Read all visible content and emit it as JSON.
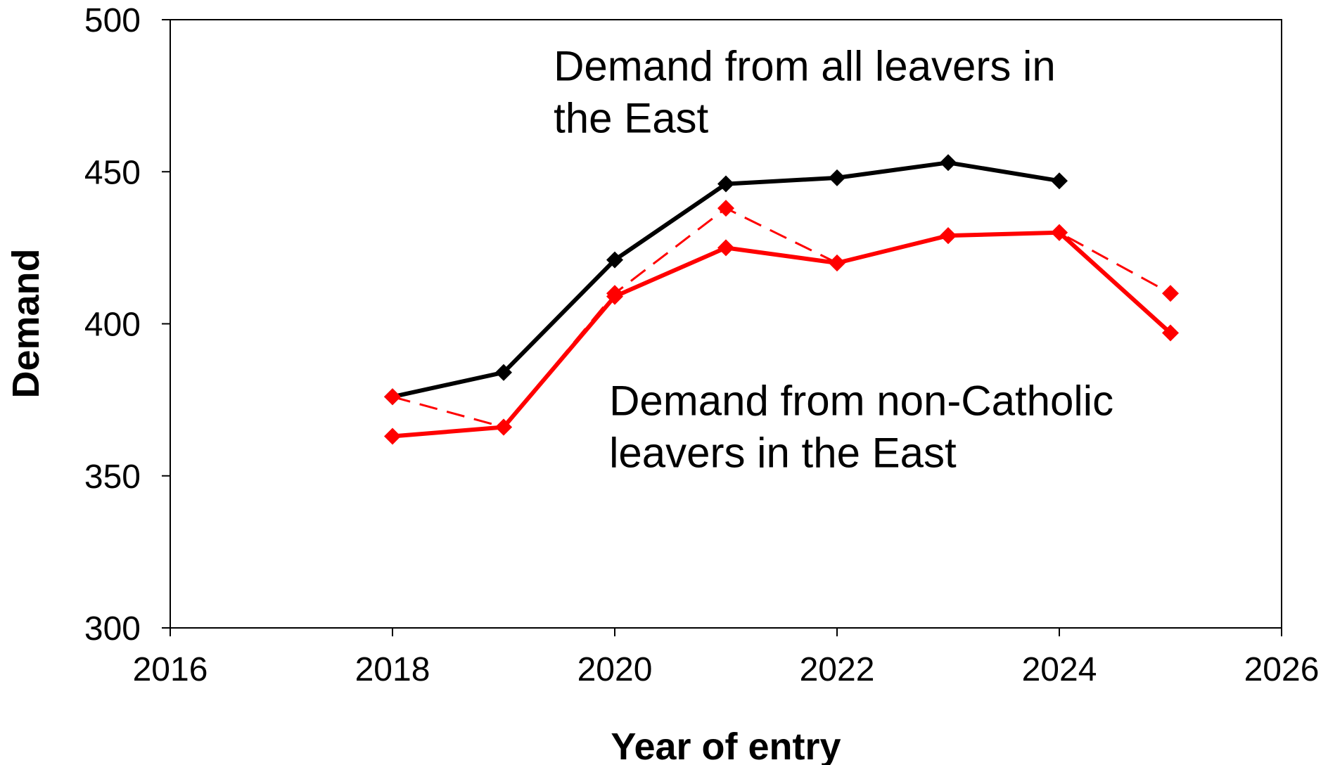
{
  "chart_data": {
    "type": "line",
    "xlabel": "Year of entry",
    "ylabel": "Demand",
    "xlim": [
      2016,
      2026
    ],
    "ylim": [
      300,
      500
    ],
    "xticks": [
      2016,
      2018,
      2020,
      2022,
      2024,
      2026
    ],
    "yticks": [
      300,
      350,
      400,
      450,
      500
    ],
    "grid": false,
    "legend": "none",
    "series": [
      {
        "color": "#000000",
        "style": "solid",
        "marker": "diamond",
        "x": [
          2018,
          2019,
          2020,
          2021,
          2022,
          2023,
          2024
        ],
        "y": [
          376,
          384,
          421,
          446,
          448,
          453,
          447
        ]
      },
      {
        "color": "#ff0000",
        "style": "dashed",
        "marker": "diamond",
        "x": [
          2018,
          2019,
          2020,
          2021,
          2022,
          2023,
          2024,
          2025
        ],
        "y": [
          376,
          366,
          410,
          438,
          420,
          429,
          430,
          410
        ]
      },
      {
        "color": "#ff0000",
        "style": "solid",
        "marker": "diamond",
        "x": [
          2018,
          2019,
          2020,
          2021,
          2022,
          2023,
          2024,
          2025
        ],
        "y": [
          363,
          366,
          409,
          425,
          420,
          429,
          430,
          397
        ]
      }
    ],
    "annotations": [
      {
        "lines": [
          "Demand from all leavers in",
          "the East"
        ],
        "x": 2019.45,
        "y": 480
      },
      {
        "lines": [
          "Demand from non-Catholic",
          "leavers in the East"
        ],
        "x": 2019.95,
        "y": 370
      }
    ]
  }
}
